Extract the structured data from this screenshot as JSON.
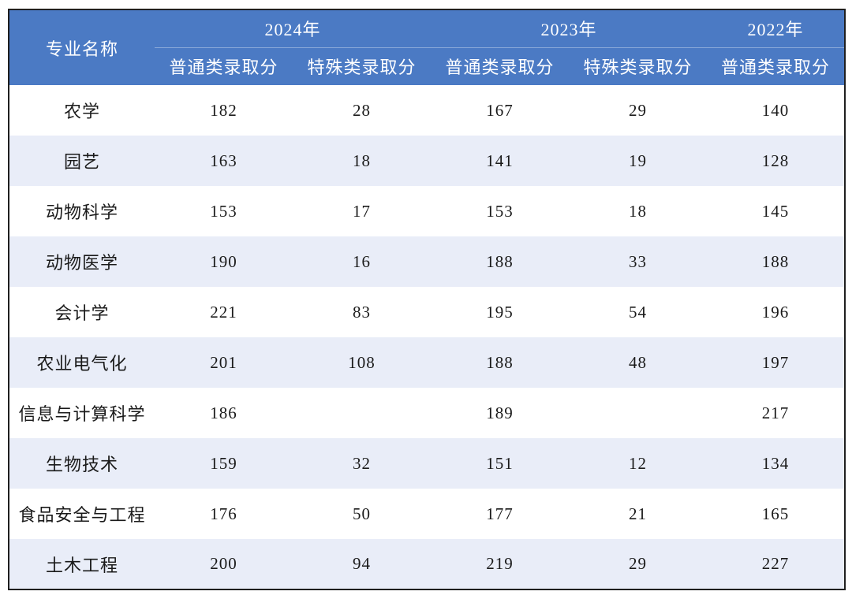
{
  "colors": {
    "header_bg": "#4B7AC4",
    "header_text": "#FFFFFF",
    "stripe_bg": "#E9EDF8",
    "row_bg": "#FFFFFF",
    "border": "#1F1F1F",
    "body_text": "#1A1A1A"
  },
  "table": {
    "header": {
      "major": "专业名称",
      "years": [
        "2024年",
        "2023年",
        "2022年"
      ],
      "subheaders": [
        "普通类录取分",
        "特殊类录取分",
        "普通类录取分",
        "特殊类录取分",
        "普通类录取分"
      ]
    },
    "rows": [
      {
        "major": "农学",
        "values": [
          "182",
          "28",
          "167",
          "29",
          "140"
        ]
      },
      {
        "major": "园艺",
        "values": [
          "163",
          "18",
          "141",
          "19",
          "128"
        ]
      },
      {
        "major": "动物科学",
        "values": [
          "153",
          "17",
          "153",
          "18",
          "145"
        ]
      },
      {
        "major": "动物医学",
        "values": [
          "190",
          "16",
          "188",
          "33",
          "188"
        ]
      },
      {
        "major": "会计学",
        "values": [
          "221",
          "83",
          "195",
          "54",
          "196"
        ]
      },
      {
        "major": "农业电气化",
        "values": [
          "201",
          "108",
          "188",
          "48",
          "197"
        ]
      },
      {
        "major": "信息与计算科学",
        "values": [
          "186",
          "",
          "189",
          "",
          "217"
        ]
      },
      {
        "major": "生物技术",
        "values": [
          "159",
          "32",
          "151",
          "12",
          "134"
        ]
      },
      {
        "major": "食品安全与工程",
        "values": [
          "176",
          "50",
          "177",
          "21",
          "165"
        ]
      },
      {
        "major": "土木工程",
        "values": [
          "200",
          "94",
          "219",
          "29",
          "227"
        ]
      }
    ]
  }
}
